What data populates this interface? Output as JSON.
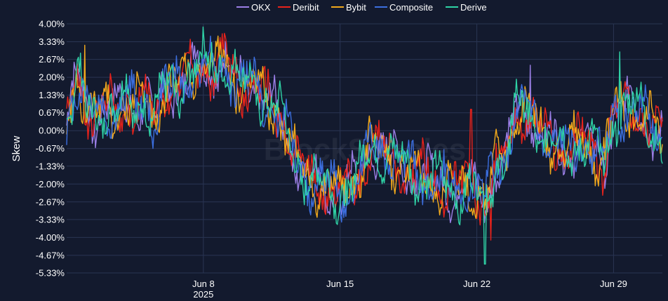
{
  "chart_data": {
    "type": "line",
    "ylabel": "Skew",
    "xlabel": "",
    "watermark": "BlockScholes",
    "x_range": [
      "2025-06-01T00:00",
      "2025-07-01T12:00"
    ],
    "ylim": [
      -5.33,
      4.0
    ],
    "y_ticks": [
      4.0,
      3.33,
      2.67,
      2.0,
      1.33,
      0.67,
      0.0,
      -0.67,
      -1.33,
      -2.0,
      -2.67,
      -3.33,
      -4.0,
      -4.67,
      -5.33
    ],
    "y_tick_labels": [
      "4.00%",
      "3.33%",
      "2.67%",
      "2.00%",
      "1.33%",
      "0.67%",
      "0.00%",
      "-0.67%",
      "-1.33%",
      "-2.00%",
      "-2.67%",
      "-3.33%",
      "-4.00%",
      "-4.67%",
      "-5.33%"
    ],
    "x_ticks": [
      {
        "date": "2025-06-08",
        "label": "Jun 8",
        "sublabel": "2025"
      },
      {
        "date": "2025-06-15",
        "label": "Jun 15",
        "sublabel": ""
      },
      {
        "date": "2025-06-22",
        "label": "Jun 22",
        "sublabel": ""
      },
      {
        "date": "2025-06-29",
        "label": "Jun 29",
        "sublabel": ""
      }
    ],
    "legend_position": "top-center",
    "grid": true,
    "series": [
      {
        "name": "OKX",
        "color": "#9b7fe6",
        "phase": 0.0
      },
      {
        "name": "Deribit",
        "color": "#e8221b",
        "phase": 1.3
      },
      {
        "name": "Bybit",
        "color": "#f2a91c",
        "phase": 2.6
      },
      {
        "name": "Composite",
        "color": "#3c6fe0",
        "phase": 3.9
      },
      {
        "name": "Derive",
        "color": "#2fd3a6",
        "phase": 5.2
      }
    ],
    "base_curve": {
      "x": [
        "2025-06-01T00:00",
        "2025-06-01T12:00",
        "2025-06-02T00:00",
        "2025-06-02T12:00",
        "2025-06-03T00:00",
        "2025-06-03T12:00",
        "2025-06-04T00:00",
        "2025-06-04T12:00",
        "2025-06-05T00:00",
        "2025-06-05T12:00",
        "2025-06-06T00:00",
        "2025-06-06T12:00",
        "2025-06-07T00:00",
        "2025-06-07T12:00",
        "2025-06-08T00:00",
        "2025-06-08T12:00",
        "2025-06-09T00:00",
        "2025-06-09T12:00",
        "2025-06-10T00:00",
        "2025-06-10T12:00",
        "2025-06-11T00:00",
        "2025-06-11T12:00",
        "2025-06-12T00:00",
        "2025-06-12T12:00",
        "2025-06-13T00:00",
        "2025-06-13T12:00",
        "2025-06-14T00:00",
        "2025-06-14T12:00",
        "2025-06-15T00:00",
        "2025-06-15T12:00",
        "2025-06-16T00:00",
        "2025-06-16T12:00",
        "2025-06-17T00:00",
        "2025-06-17T12:00",
        "2025-06-18T00:00",
        "2025-06-18T12:00",
        "2025-06-19T00:00",
        "2025-06-19T12:00",
        "2025-06-20T00:00",
        "2025-06-20T12:00",
        "2025-06-21T00:00",
        "2025-06-21T12:00",
        "2025-06-22T00:00",
        "2025-06-22T12:00",
        "2025-06-23T00:00",
        "2025-06-23T12:00",
        "2025-06-24T00:00",
        "2025-06-24T12:00",
        "2025-06-25T00:00",
        "2025-06-25T12:00",
        "2025-06-26T00:00",
        "2025-06-26T12:00",
        "2025-06-27T00:00",
        "2025-06-27T12:00",
        "2025-06-28T00:00",
        "2025-06-28T12:00",
        "2025-06-29T00:00",
        "2025-06-29T12:00",
        "2025-06-30T00:00",
        "2025-06-30T12:00",
        "2025-07-01T00:00",
        "2025-07-01T12:00"
      ],
      "y": [
        0.2,
        2.0,
        0.9,
        0.5,
        1.0,
        0.6,
        1.2,
        0.8,
        1.3,
        0.4,
        1.5,
        1.7,
        1.9,
        2.3,
        2.5,
        2.2,
        2.7,
        2.0,
        1.7,
        1.9,
        1.3,
        0.8,
        0.5,
        -0.6,
        -1.5,
        -1.8,
        -2.0,
        -2.2,
        -2.3,
        -2.1,
        -1.8,
        -0.5,
        -0.7,
        -1.0,
        -1.2,
        -1.5,
        -1.6,
        -1.8,
        -2.0,
        -2.1,
        -2.2,
        -2.0,
        -2.3,
        -2.5,
        -1.2,
        -1.0,
        0.7,
        0.9,
        0.2,
        -0.3,
        -0.5,
        -0.7,
        -0.6,
        -0.4,
        -0.8,
        -1.2,
        0.6,
        0.9,
        0.9,
        0.6,
        0.1,
        -0.3
      ]
    },
    "spikes": [
      {
        "x": "2025-06-21T17:00",
        "series": "Deribit",
        "y": 0.8
      },
      {
        "x": "2025-06-22T10:00",
        "series": "Derive",
        "y": -5.0
      },
      {
        "x": "2025-06-22T17:00",
        "series": "Deribit",
        "y": -4.1
      },
      {
        "x": "2025-06-29T08:00",
        "series": "Derive",
        "y": 2.95
      },
      {
        "x": "2025-06-08T10:00",
        "series": "Derive",
        "y": 3.3
      },
      {
        "x": "2025-06-24T18:00",
        "series": "OKX",
        "y": 2.45
      },
      {
        "x": "2025-06-01T22:00",
        "series": "Bybit",
        "y": 3.2
      }
    ]
  }
}
